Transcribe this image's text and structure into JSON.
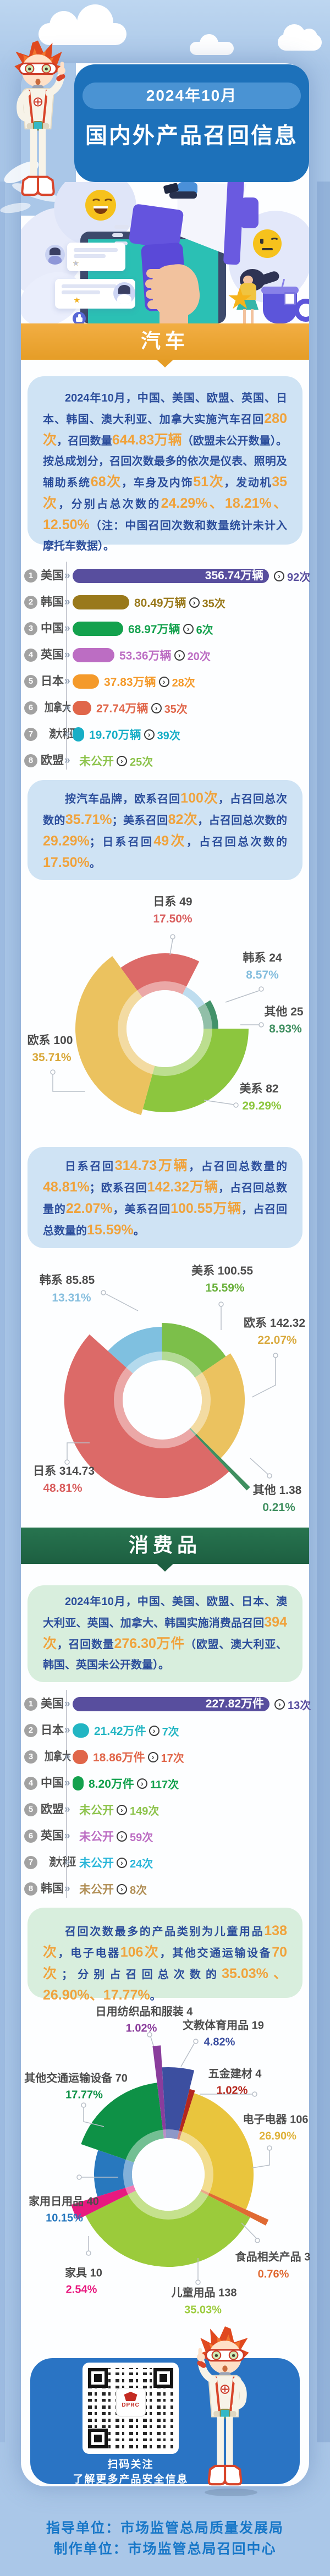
{
  "header": {
    "date_pill": "2024年10月",
    "title": "国内外产品召回信息"
  },
  "icons": {
    "star": "★",
    "arrow": "»",
    "chevron": "›",
    "big_star": "★"
  },
  "sections": {
    "auto": {
      "banner": "汽车",
      "intro": [
        {
          "t": "2024年10月，中国、美国、欧盟、英国、日本、韩国、澳大利亚、加拿大实施汽车召回"
        },
        {
          "t": "280次",
          "hl": true
        },
        {
          "t": "，召回数量"
        },
        {
          "t": "644.83万辆",
          "hl": true
        },
        {
          "t": "（欧盟未公开数量）。按总成划分，召回次数最多的依次是仪表、照明及辅助系统"
        },
        {
          "t": "68次",
          "hl": true
        },
        {
          "t": "，车身及内饰"
        },
        {
          "t": "51次",
          "hl": true
        },
        {
          "t": "，发动机"
        },
        {
          "t": "35次",
          "hl": true
        },
        {
          "t": "，分别占总次数的"
        },
        {
          "t": "24.29%、18.21%、12.50%",
          "hl": true
        },
        {
          "t": "（注：中国召回次数和数量统计未计入摩托车数据）。"
        }
      ],
      "brand_intro": [
        {
          "t": "按汽车品牌，欧系召回"
        },
        {
          "t": "100次",
          "hl": true
        },
        {
          "t": "，占召回总次数的"
        },
        {
          "t": "35.71%",
          "hl": true
        },
        {
          "t": "；美系召回"
        },
        {
          "t": "82次",
          "hl": true
        },
        {
          "t": "，占召回总次数的"
        },
        {
          "t": "29.29%",
          "hl": true
        },
        {
          "t": "；日系召回"
        },
        {
          "t": "49次",
          "hl": true
        },
        {
          "t": "，占召回总次数的"
        },
        {
          "t": "17.50%",
          "hl": true
        },
        {
          "t": "。"
        }
      ],
      "volume_intro": [
        {
          "t": "日系召回"
        },
        {
          "t": "314.73万辆",
          "hl": true
        },
        {
          "t": "，占召回总数量的"
        },
        {
          "t": "48.81%",
          "hl": true
        },
        {
          "t": "；欧系召回"
        },
        {
          "t": "142.32万辆",
          "hl": true
        },
        {
          "t": "，占召回总数量的"
        },
        {
          "t": "22.07%",
          "hl": true
        },
        {
          "t": "，美系召回"
        },
        {
          "t": "100.55万辆",
          "hl": true
        },
        {
          "t": "，占召回总数量的"
        },
        {
          "t": "15.59%",
          "hl": true
        },
        {
          "t": "。"
        }
      ]
    },
    "consumer": {
      "banner": "消费品",
      "intro": [
        {
          "t": "2024年10月，中国、美国、欧盟、日本、澳大利亚、英国、加拿大、韩国实施消费品召回"
        },
        {
          "t": "394次",
          "hl": true
        },
        {
          "t": "，召回数量"
        },
        {
          "t": "276.30万件",
          "hl": true
        },
        {
          "t": "（欧盟、澳大利亚、韩国、英国未公开数量）。"
        }
      ],
      "category_intro": [
        {
          "t": "召回次数最多的产品类别为儿童用品"
        },
        {
          "t": "138次",
          "hl": true
        },
        {
          "t": "，电子电器"
        },
        {
          "t": "106次",
          "hl": true
        },
        {
          "t": "，其他交通运输设备"
        },
        {
          "t": "70次",
          "hl": true
        },
        {
          "t": "；分别占召回总次数的"
        },
        {
          "t": "35.03%、26.90%、17.77%",
          "hl": true
        },
        {
          "t": "。"
        }
      ]
    }
  },
  "qr": {
    "line1": "扫码关注",
    "line2": "了解更多产品安全信息",
    "logo_text": "DPRC"
  },
  "footer": {
    "line1": "指导单位：市场监管总局质量发展局",
    "line2": "制作单位：市场监管总局召回中心"
  },
  "chart_data": [
    {
      "type": "bar",
      "name": "汽车召回按国家地区",
      "unit": "万辆",
      "items": [
        {
          "rank": 1,
          "label": "美国",
          "display": "356.74万辆",
          "value": 356.74,
          "times": "92次",
          "color": "#584e9e"
        },
        {
          "rank": 2,
          "label": "韩国",
          "display": "80.49万辆",
          "value": 80.49,
          "times": "35次",
          "color": "#99791b"
        },
        {
          "rank": 3,
          "label": "中国",
          "display": "68.97万辆",
          "value": 68.97,
          "times": "6次",
          "color": "#13a14d"
        },
        {
          "rank": 4,
          "label": "英国",
          "display": "53.36万辆",
          "value": 53.36,
          "times": "20次",
          "color": "#bc6dc3"
        },
        {
          "rank": 5,
          "label": "日本",
          "display": "37.83万辆",
          "value": 37.83,
          "times": "28次",
          "color": "#f49a2b"
        },
        {
          "rank": 6,
          "label": "加拿大",
          "display": "27.74万辆",
          "value": 27.74,
          "times": "35次",
          "color": "#e0664a"
        },
        {
          "rank": 7,
          "label": "澳大利亚",
          "display": "19.70万辆",
          "value": 19.7,
          "times": "39次",
          "color": "#17aec6"
        },
        {
          "rank": 8,
          "label": "欧盟",
          "display": "未公开",
          "value": null,
          "times": "25次",
          "color": "#8cc34b"
        }
      ]
    },
    {
      "type": "pie",
      "name": "汽车召回次数按品牌",
      "unit": "次",
      "items": [
        {
          "label": "日系",
          "value": 49,
          "pct": "17.50%",
          "pnum": 17.5,
          "color": "#dc6a68",
          "pct_color": "#d95f5f"
        },
        {
          "label": "韩系",
          "value": 24,
          "pct": "8.57%",
          "pnum": 8.57,
          "color": "#8fc4e4",
          "pct_color": "#85bede"
        },
        {
          "label": "其他",
          "value": 25,
          "pct": "8.93%",
          "pnum": 8.93,
          "color": "#43926a",
          "pct_color": "#3f8f60"
        },
        {
          "label": "美系",
          "value": 82,
          "pct": "29.29%",
          "pnum": 29.29,
          "color": "#8cc63e",
          "pct_color": "#8cc63e"
        },
        {
          "label": "欧系",
          "value": 100,
          "pct": "35.71%",
          "pnum": 35.71,
          "color": "#ebc25f",
          "pct_color": "#d9a93c"
        }
      ]
    },
    {
      "type": "pie",
      "name": "汽车召回数量按品牌",
      "unit": "万辆",
      "items": [
        {
          "label": "韩系",
          "value": 85.85,
          "pct": "13.31%",
          "pnum": 13.31,
          "color": "#7fc0e0",
          "pct_color": "#85bede"
        },
        {
          "label": "美系",
          "value": 100.55,
          "pct": "15.59%",
          "pnum": 15.59,
          "color": "#7cbf4a",
          "pct_color": "#6cb23f"
        },
        {
          "label": "欧系",
          "value": 142.32,
          "pct": "22.07%",
          "pnum": 22.07,
          "color": "#ebc25f",
          "pct_color": "#d9a93c"
        },
        {
          "label": "其他",
          "value": 1.38,
          "pct": "0.21%",
          "pnum": 0.21,
          "color": "#3f8f60",
          "pct_color": "#3f8f60"
        },
        {
          "label": "日系",
          "value": 314.73,
          "pct": "48.81%",
          "pnum": 48.81,
          "color": "#dc6a68",
          "pct_color": "#d95f5f"
        }
      ]
    },
    {
      "type": "bar",
      "name": "消费品召回按国家地区",
      "unit": "万件",
      "items": [
        {
          "rank": 1,
          "label": "美国",
          "display": "227.82万件",
          "value": 227.82,
          "times": "13次",
          "color": "#584e9e"
        },
        {
          "rank": 2,
          "label": "日本",
          "display": "21.42万件",
          "value": 21.42,
          "times": "7次",
          "color": "#22b5c3"
        },
        {
          "rank": 3,
          "label": "加拿大",
          "display": "18.86万件",
          "value": 18.86,
          "times": "17次",
          "color": "#e0664a"
        },
        {
          "rank": 4,
          "label": "中国",
          "display": "8.20万件",
          "value": 8.2,
          "times": "117次",
          "color": "#13a14d"
        },
        {
          "rank": 5,
          "label": "欧盟",
          "display": "未公开",
          "value": null,
          "times": "149次",
          "color": "#8cc34b"
        },
        {
          "rank": 6,
          "label": "英国",
          "display": "未公开",
          "value": null,
          "times": "59次",
          "color": "#bc6dc3"
        },
        {
          "rank": 7,
          "label": "澳大利亚",
          "display": "未公开",
          "value": null,
          "times": "24次",
          "color": "#2ab6d9"
        },
        {
          "rank": 8,
          "label": "韩国",
          "display": "未公开",
          "value": null,
          "times": "8次",
          "color": "#b08e55"
        }
      ]
    },
    {
      "type": "pie",
      "name": "消费品召回次数按产品类别",
      "unit": "次",
      "items": [
        {
          "label": "日用纺织品和服装",
          "value": 4,
          "pct": "1.02%",
          "pnum": 1.02,
          "color": "#8a3d9c",
          "pct_color": "#8a3d9c"
        },
        {
          "label": "文教体育用品",
          "value": 19,
          "pct": "4.82%",
          "pnum": 4.82,
          "color": "#3c4fa0",
          "pct_color": "#3c4fa0"
        },
        {
          "label": "五金建材",
          "value": 4,
          "pct": "1.02%",
          "pnum": 1.02,
          "color": "#b5271e",
          "pct_color": "#b5271e"
        },
        {
          "label": "电子电器",
          "value": 106,
          "pct": "26.90%",
          "pnum": 26.9,
          "color": "#e9c53d",
          "pct_color": "#dfb23a"
        },
        {
          "label": "食品相关产品",
          "value": 3,
          "pct": "0.76%",
          "pnum": 0.76,
          "color": "#e06a33",
          "pct_color": "#e06a33"
        },
        {
          "label": "儿童用品",
          "value": 138,
          "pct": "35.03%",
          "pnum": 35.03,
          "color": "#9bcb3b",
          "pct_color": "#9bcb3b"
        },
        {
          "label": "家具",
          "value": 10,
          "pct": "2.54%",
          "pnum": 2.54,
          "color": "#e8197f",
          "pct_color": "#e8197f"
        },
        {
          "label": "家用日用品",
          "value": 40,
          "pct": "10.15%",
          "pnum": 10.15,
          "color": "#2878be",
          "pct_color": "#2878be"
        },
        {
          "label": "其他交通运输设备",
          "value": 70,
          "pct": "17.77%",
          "pnum": 17.77,
          "color": "#0e9146",
          "pct_color": "#0e9146"
        }
      ]
    }
  ]
}
